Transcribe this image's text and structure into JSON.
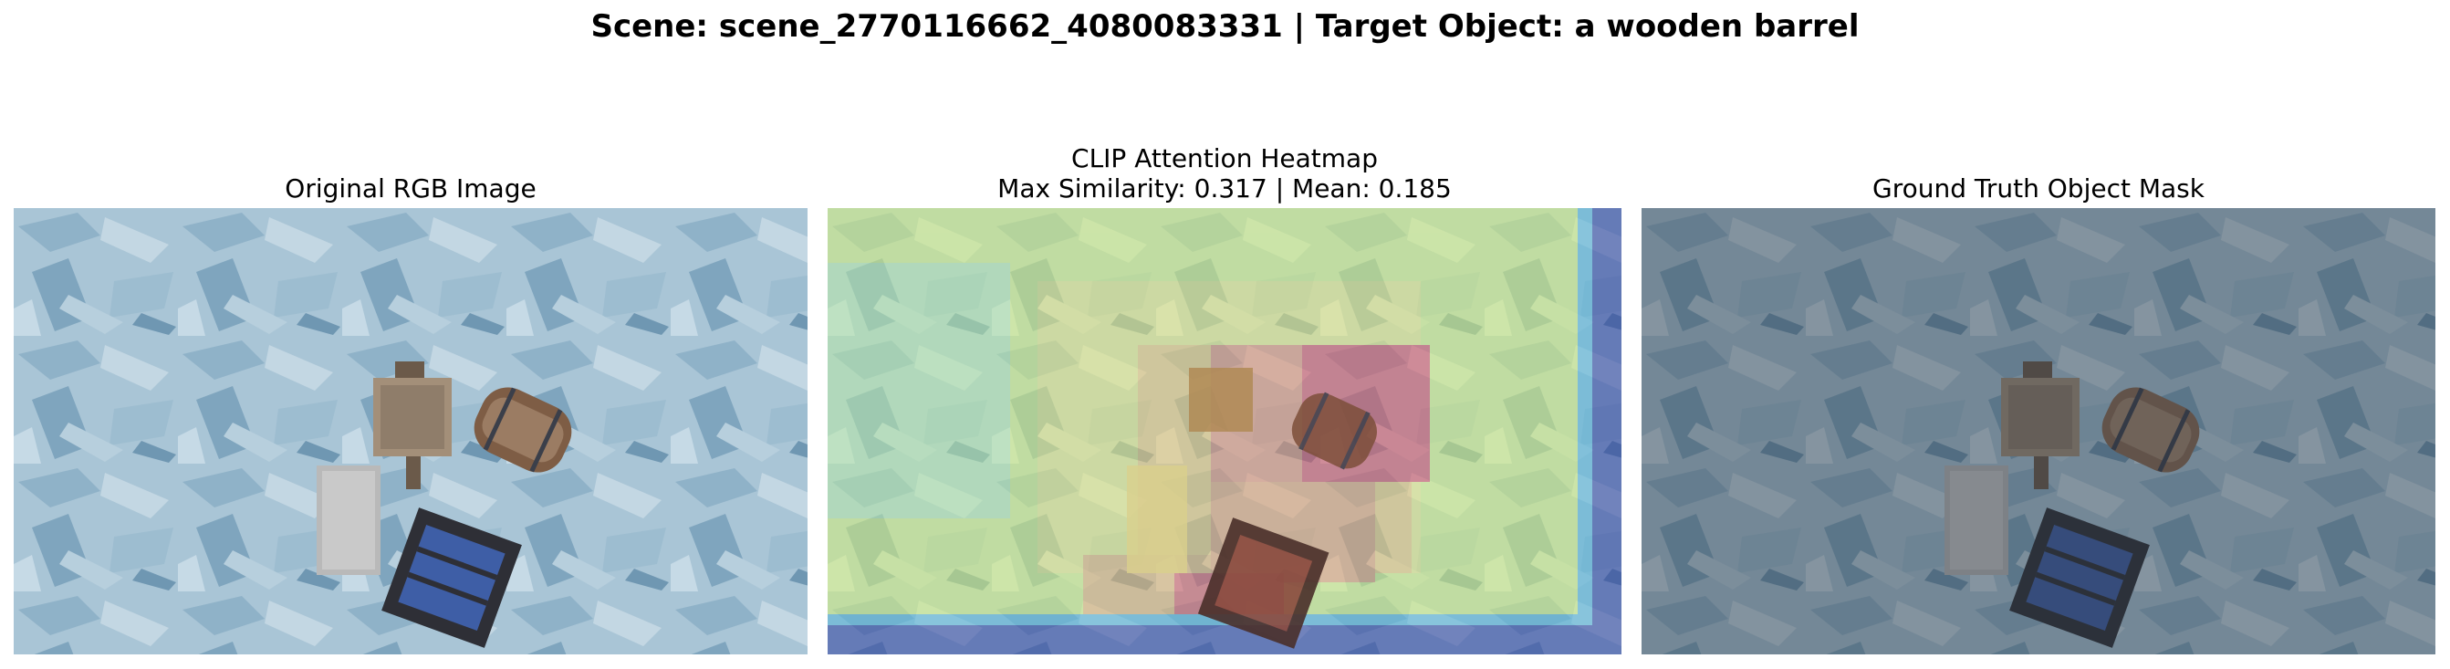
{
  "figure": {
    "suptitle": "Scene: scene_2770116662_4080083331 | Target Object: a wooden barrel"
  },
  "panels": [
    {
      "title": "Original RGB Image"
    },
    {
      "title_line1": "CLIP Attention Heatmap",
      "title_line2": "Max Similarity: 0.317 | Mean: 0.185"
    },
    {
      "title": "Ground Truth Object Mask"
    }
  ],
  "heatmap": {
    "max_similarity": 0.317,
    "mean": 0.185,
    "colormap": "jet",
    "colors": {
      "low": "#2f3f9e",
      "mid": "#c9ec86",
      "high": "#d04a52"
    }
  },
  "scene_objects": [
    "a wooden barrel",
    "crate",
    "lantern",
    "plank"
  ]
}
